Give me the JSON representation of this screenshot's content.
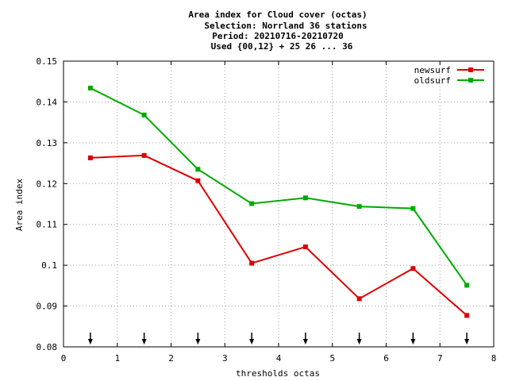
{
  "chart_data": {
    "type": "line",
    "title_lines": [
      "Area index  for Cloud cover (octas)",
      "Selection: Norrland     36 stations",
      "Period: 20210716-20210720",
      "Used {00,12} + 25 26 ... 36"
    ],
    "xlabel": "thresholds octas",
    "ylabel": "Area index",
    "xlim": [
      0,
      8
    ],
    "ylim": [
      0.08,
      0.15
    ],
    "x_ticks": [
      "0",
      "1",
      "2",
      "3",
      "4",
      "5",
      "6",
      "7",
      "8"
    ],
    "y_ticks": [
      "0.08",
      "0.09",
      "0.1",
      "0.11",
      "0.12",
      "0.13",
      "0.14",
      "0.15"
    ],
    "grid": true,
    "legend_position": "top-right",
    "x": [
      0.5,
      1.5,
      2.5,
      3.5,
      4.5,
      5.5,
      6.5,
      7.5
    ],
    "series": [
      {
        "name": "newsurf",
        "color": "#dd0000",
        "values": [
          0.1263,
          0.1269,
          0.1207,
          0.1005,
          0.1045,
          0.0918,
          0.0992,
          0.0877
        ]
      },
      {
        "name": "oldsurf",
        "color": "#00aa00",
        "values": [
          0.1434,
          0.1368,
          0.1235,
          0.1151,
          0.1165,
          0.1144,
          0.1139,
          0.0951
        ]
      }
    ],
    "threshold_arrows_x": [
      0.5,
      1.5,
      2.5,
      3.5,
      4.5,
      5.5,
      6.5,
      7.5
    ]
  }
}
